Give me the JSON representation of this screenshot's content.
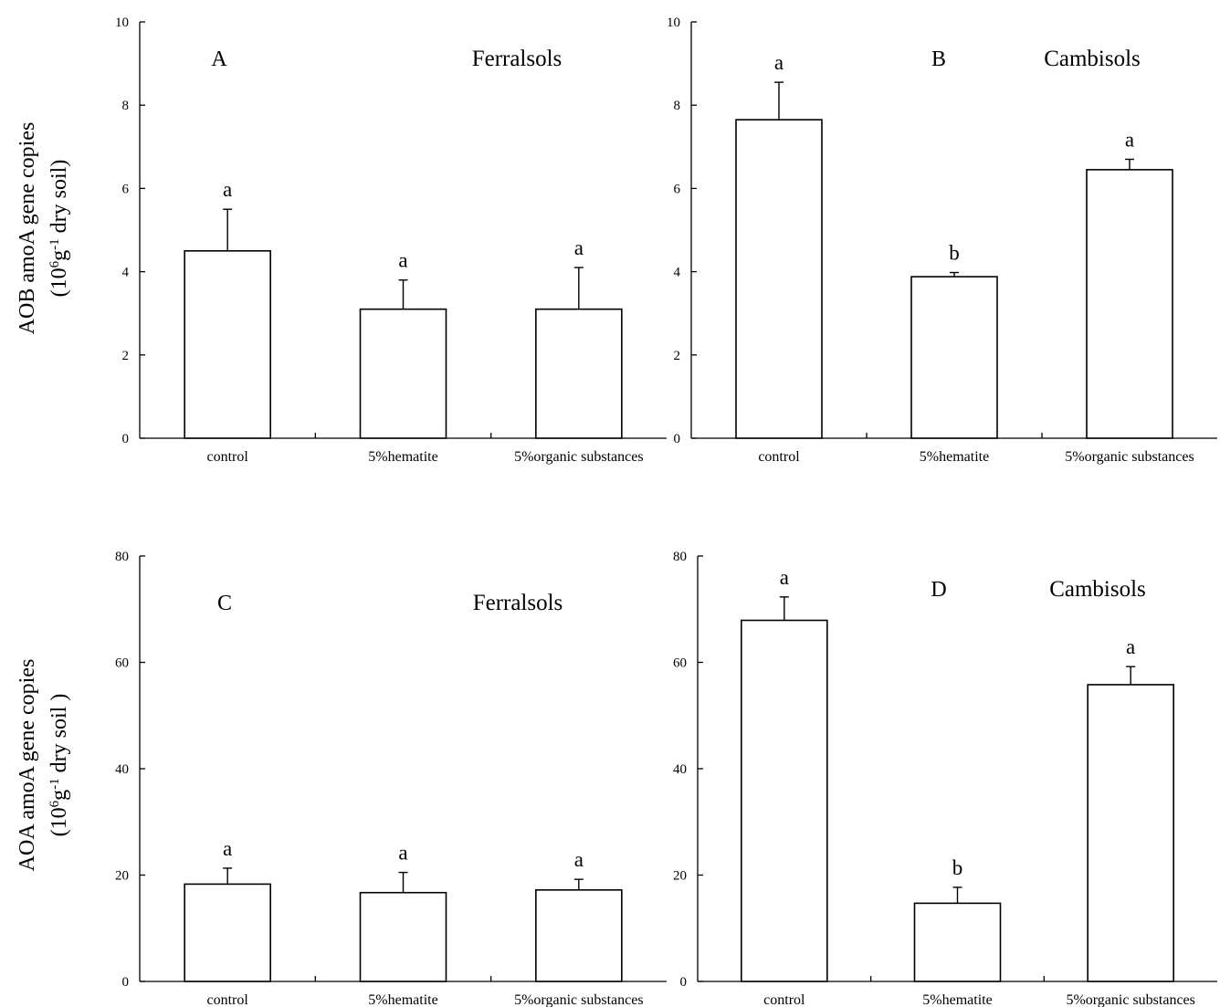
{
  "y_axis_titles": {
    "top": {
      "line1": "AOB amoA gene copies",
      "line2_prefix": "(10",
      "line2_sup1": "6",
      "line2_mid": "g",
      "line2_sup2": "-1",
      "line2_suffix": " dry soil)"
    },
    "bottom": {
      "line1": "AOA amoA gene copies",
      "line2_prefix": "(10",
      "line2_sup1": "6",
      "line2_mid": "g",
      "line2_sup2": "-1",
      "line2_suffix": " dry soil )"
    }
  },
  "chart_data": [
    {
      "type": "bar",
      "panel": "A",
      "soil": "Ferralsols",
      "categories": [
        "control",
        "5%hematite",
        "5%organic substances"
      ],
      "values": [
        4.5,
        3.1,
        3.1
      ],
      "errors": [
        1.0,
        0.7,
        1.0
      ],
      "significance": [
        "a",
        "a",
        "a"
      ],
      "ylim": [
        0,
        10
      ],
      "yticks": [
        0,
        2,
        4,
        6,
        8,
        10
      ],
      "grid": false
    },
    {
      "type": "bar",
      "panel": "B",
      "soil": "Cambisols",
      "categories": [
        "control",
        "5%hematite",
        "5%organic substances"
      ],
      "values": [
        7.65,
        3.88,
        6.45
      ],
      "errors": [
        0.9,
        0.1,
        0.25
      ],
      "significance": [
        "a",
        "b",
        "a"
      ],
      "ylim": [
        0,
        10
      ],
      "yticks": [
        0,
        2,
        4,
        6,
        8,
        10
      ],
      "grid": false
    },
    {
      "type": "bar",
      "panel": "C",
      "soil": "Ferralsols",
      "categories": [
        "control",
        "5%hematite",
        "5%organic substances"
      ],
      "values": [
        18.3,
        16.7,
        17.2
      ],
      "errors": [
        3.0,
        3.8,
        2.0
      ],
      "significance": [
        "a",
        "a",
        "a"
      ],
      "ylim": [
        0,
        80
      ],
      "yticks": [
        0,
        20,
        40,
        60,
        80
      ],
      "grid": false
    },
    {
      "type": "bar",
      "panel": "D",
      "soil": "Cambisols",
      "categories": [
        "control",
        "5%hematite",
        "5%organic substances"
      ],
      "values": [
        67.9,
        14.7,
        55.8
      ],
      "errors": [
        4.4,
        3.0,
        3.4
      ],
      "significance": [
        "a",
        "b",
        "a"
      ],
      "ylim": [
        0,
        80
      ],
      "yticks": [
        0,
        20,
        40,
        60,
        80
      ],
      "grid": false
    }
  ]
}
